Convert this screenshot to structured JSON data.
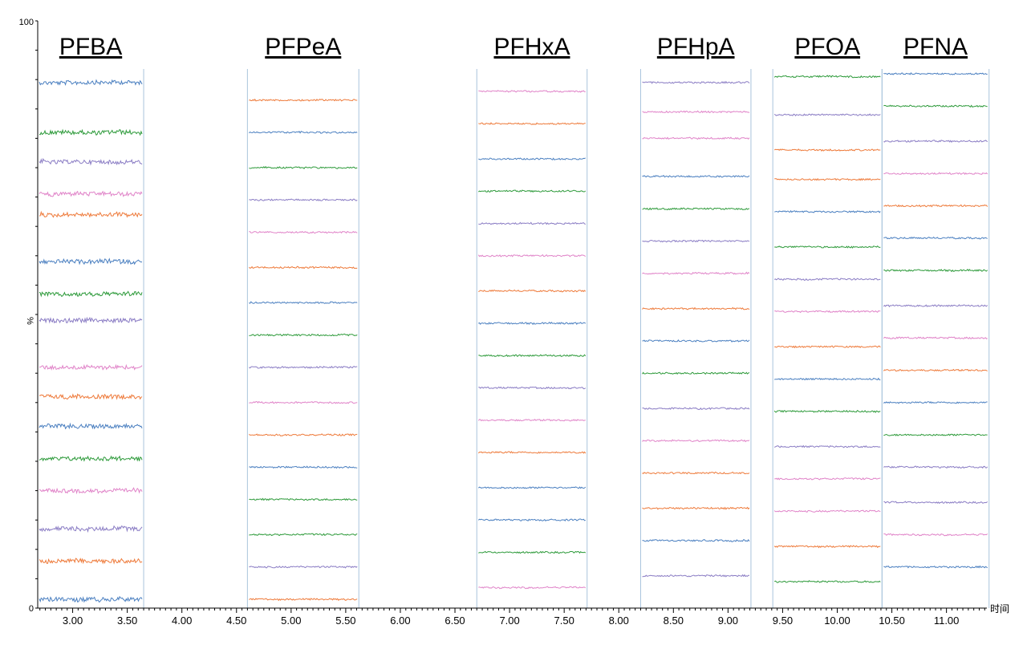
{
  "chart_data": {
    "type": "line",
    "xlabel": "时间",
    "ylabel": "%",
    "xlim": [
      2.68,
      11.37
    ],
    "ylim": [
      0,
      100
    ],
    "x_ticks": [
      "3.00",
      "3.50",
      "4.00",
      "4.50",
      "5.00",
      "5.50",
      "6.00",
      "6.50",
      "7.00",
      "7.50",
      "8.00",
      "8.50",
      "9.00",
      "9.50",
      "10.00",
      "10.50",
      "11.00"
    ],
    "y_ticks": [
      "0",
      "100"
    ],
    "grid": false,
    "legend": "none",
    "colors": [
      "#4a7fc0",
      "#ee7a3a",
      "#2d9a3a",
      "#8a7cc4",
      "#e083c8"
    ],
    "windows": [
      {
        "label": "PFBA",
        "start": 2.68,
        "end": 3.65,
        "color_seq": [
          0,
          2,
          3,
          4,
          1,
          0,
          2,
          3,
          4,
          1,
          0,
          2,
          4,
          3,
          1,
          0
        ],
        "levels": [
          89.5,
          81.0,
          76.0,
          70.5,
          67.0,
          59.0,
          53.5,
          49.0,
          41.0,
          36.0,
          31.0,
          25.5,
          20.0,
          13.5,
          8.0,
          1.5
        ]
      },
      {
        "label": "PFPeA",
        "start": 4.6,
        "end": 5.62,
        "color_seq": [
          1,
          0,
          2,
          3,
          4,
          1,
          0,
          2,
          3,
          4,
          1,
          0,
          2,
          2,
          3,
          1
        ],
        "levels": [
          86.5,
          81.0,
          75.0,
          69.5,
          64.0,
          58.0,
          52.0,
          46.5,
          41.0,
          35.0,
          29.5,
          24.0,
          18.5,
          12.5,
          7.0,
          1.5
        ]
      },
      {
        "label": "PFHxA",
        "start": 6.7,
        "end": 7.71,
        "color_seq": [
          4,
          1,
          0,
          2,
          3,
          4,
          1,
          0,
          2,
          3,
          4,
          1,
          0,
          0,
          2,
          4
        ],
        "levels": [
          88.0,
          82.5,
          76.5,
          71.0,
          65.5,
          60.0,
          54.0,
          48.5,
          43.0,
          37.5,
          32.0,
          26.5,
          20.5,
          15.0,
          9.5,
          3.5
        ]
      },
      {
        "label": "PFHpA",
        "start": 8.2,
        "end": 9.21,
        "color_seq": [
          3,
          4,
          4,
          0,
          2,
          3,
          4,
          1,
          0,
          2,
          3,
          4,
          1,
          1,
          0,
          3
        ],
        "levels": [
          89.5,
          84.5,
          80.0,
          73.5,
          68.0,
          62.5,
          57.0,
          51.0,
          45.5,
          40.0,
          34.0,
          28.5,
          23.0,
          17.0,
          11.5,
          5.5
        ]
      },
      {
        "label": "PFOA",
        "start": 9.41,
        "end": 10.41,
        "color_seq": [
          2,
          3,
          1,
          1,
          0,
          2,
          3,
          4,
          1,
          0,
          2,
          3,
          4,
          4,
          1,
          2
        ],
        "levels": [
          90.5,
          84.0,
          78.0,
          73.0,
          67.5,
          61.5,
          56.0,
          50.5,
          44.5,
          39.0,
          33.5,
          27.5,
          22.0,
          16.5,
          10.5,
          4.5
        ]
      },
      {
        "label": "PFNA",
        "start": 10.41,
        "end": 11.39,
        "color_seq": [
          0,
          2,
          3,
          4,
          1,
          0,
          2,
          3,
          4,
          1,
          0,
          2,
          3,
          3,
          4,
          0
        ],
        "levels": [
          91.0,
          85.5,
          79.5,
          74.0,
          68.5,
          63.0,
          57.5,
          51.5,
          46.0,
          40.5,
          35.0,
          29.5,
          24.0,
          18.0,
          12.5,
          7.0
        ]
      }
    ]
  }
}
